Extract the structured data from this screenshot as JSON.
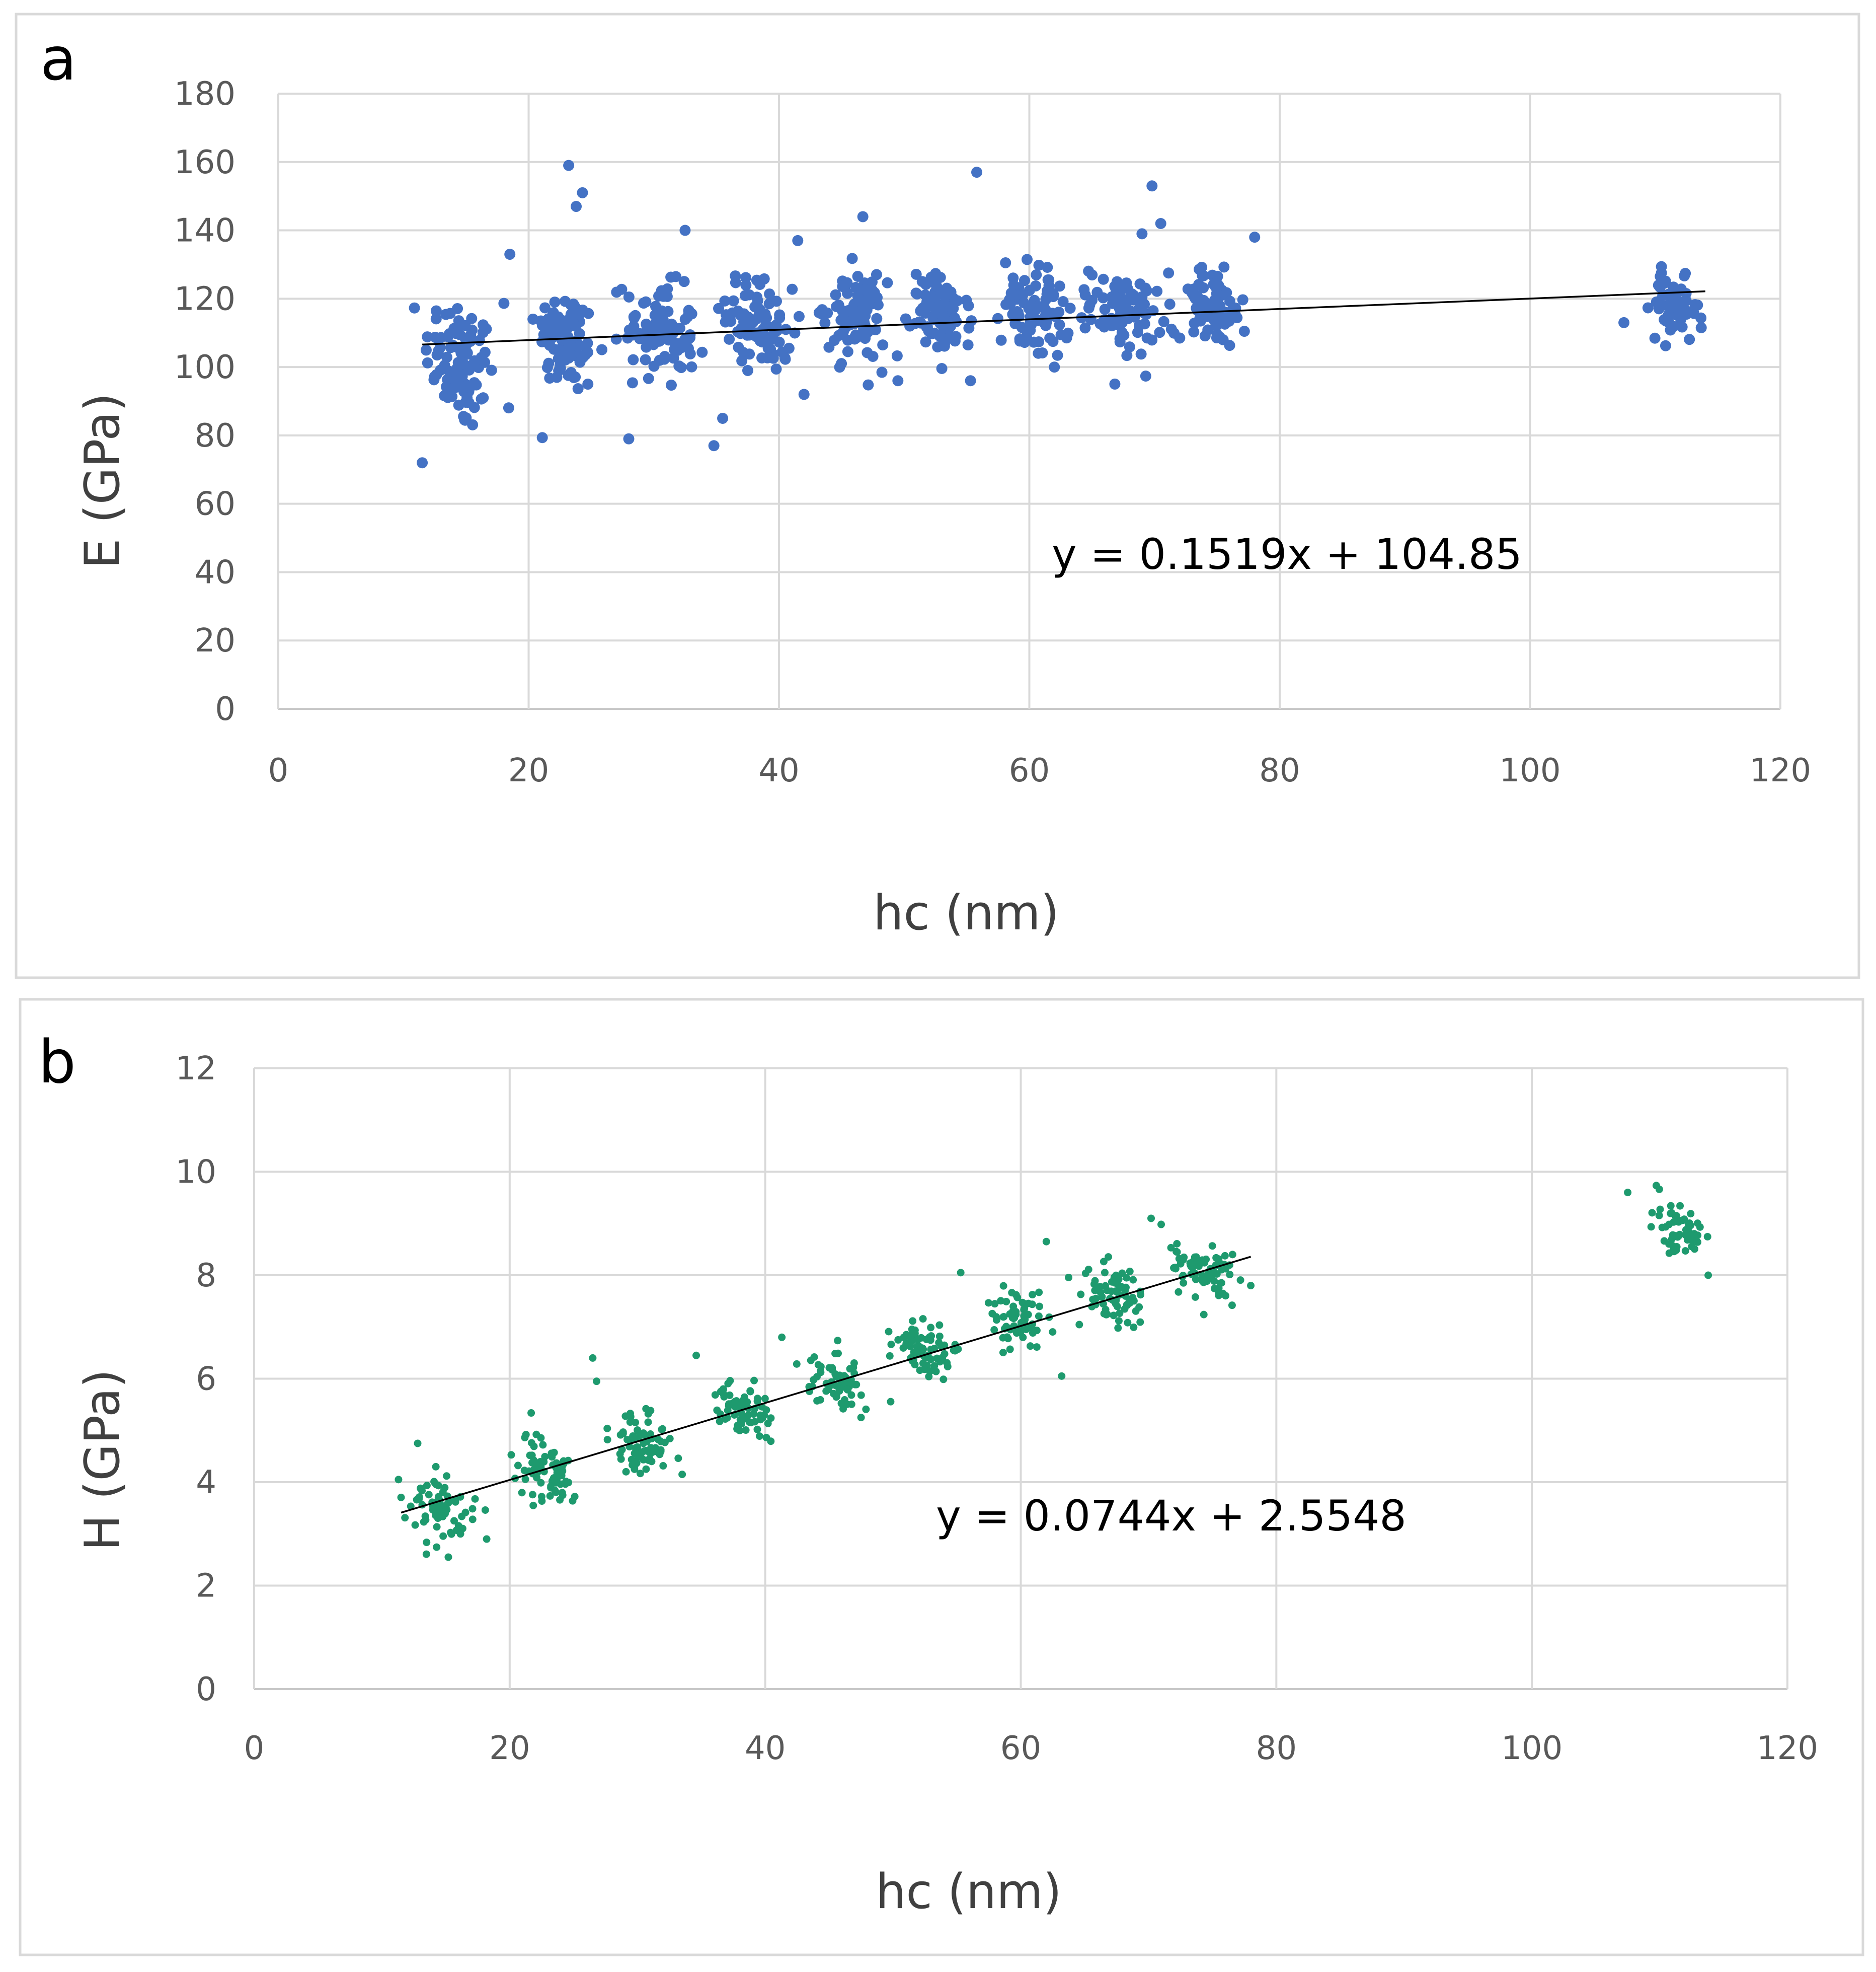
{
  "chart_data": [
    {
      "type": "scatter",
      "panel_label": "a",
      "xlabel": "hc (nm)",
      "ylabel": "E (GPa)",
      "xlim": [
        0,
        120
      ],
      "ylim": [
        0,
        180
      ],
      "x_ticks": [
        "0",
        "20",
        "40",
        "60",
        "80",
        "100",
        "120"
      ],
      "y_ticks": [
        "0",
        "20",
        "40",
        "60",
        "80",
        "100",
        "120",
        "140",
        "160",
        "180"
      ],
      "grid": true,
      "marker_color": "#4472c4",
      "trendline": {
        "slope": 0.1519,
        "intercept": 104.85,
        "x_range": [
          11.5,
          114
        ]
      },
      "equation": "y = 0.1519x + 104.85",
      "clusters": [
        {
          "x_center": 14.5,
          "x_spread": 1.6,
          "y_center": 101,
          "y_spread": 10,
          "count": 95
        },
        {
          "x_center": 23,
          "x_spread": 1.4,
          "y_center": 108,
          "y_spread": 8,
          "count": 90
        },
        {
          "x_center": 30.5,
          "x_spread": 1.6,
          "y_center": 110,
          "y_spread": 8,
          "count": 90
        },
        {
          "x_center": 38.5,
          "x_spread": 1.5,
          "y_center": 113,
          "y_spread": 7,
          "count": 85
        },
        {
          "x_center": 46,
          "x_spread": 1.4,
          "y_center": 115,
          "y_spread": 7,
          "count": 85
        },
        {
          "x_center": 53,
          "x_spread": 1.4,
          "y_center": 115,
          "y_spread": 6,
          "count": 85
        },
        {
          "x_center": 60.5,
          "x_spread": 1.5,
          "y_center": 117,
          "y_spread": 7,
          "count": 80
        },
        {
          "x_center": 67.5,
          "x_spread": 1.5,
          "y_center": 116,
          "y_spread": 6,
          "count": 80
        },
        {
          "x_center": 74.5,
          "x_spread": 1.6,
          "y_center": 118,
          "y_spread": 6,
          "count": 80
        },
        {
          "x_center": 111.5,
          "x_spread": 1.1,
          "y_center": 117,
          "y_spread": 5,
          "count": 55
        }
      ],
      "outliers": [
        {
          "x": 11.5,
          "y": 72
        },
        {
          "x": 18.5,
          "y": 133
        },
        {
          "x": 23.2,
          "y": 159
        },
        {
          "x": 24.3,
          "y": 151
        },
        {
          "x": 23.8,
          "y": 147
        },
        {
          "x": 28,
          "y": 79
        },
        {
          "x": 32.5,
          "y": 140
        },
        {
          "x": 34.8,
          "y": 77
        },
        {
          "x": 35.5,
          "y": 85
        },
        {
          "x": 41.5,
          "y": 137
        },
        {
          "x": 42,
          "y": 92
        },
        {
          "x": 46.7,
          "y": 144
        },
        {
          "x": 49.5,
          "y": 96
        },
        {
          "x": 55.8,
          "y": 157
        },
        {
          "x": 55.3,
          "y": 96
        },
        {
          "x": 62,
          "y": 100
        },
        {
          "x": 69.8,
          "y": 153
        },
        {
          "x": 70.5,
          "y": 142
        },
        {
          "x": 69,
          "y": 139
        },
        {
          "x": 78,
          "y": 138
        },
        {
          "x": 107.5,
          "y": 113
        }
      ]
    },
    {
      "type": "scatter",
      "panel_label": "b",
      "xlabel": "hc (nm)",
      "ylabel": "H (GPa)",
      "xlim": [
        0,
        120
      ],
      "ylim": [
        0,
        12
      ],
      "x_ticks": [
        "0",
        "20",
        "40",
        "60",
        "80",
        "100",
        "120"
      ],
      "y_ticks": [
        "0",
        "2",
        "4",
        "6",
        "8",
        "10",
        "12"
      ],
      "grid": true,
      "marker_color": "#1e9a6e",
      "trendline": {
        "slope": 0.0744,
        "intercept": 2.5548,
        "x_range": [
          11.5,
          78
        ]
      },
      "equation": "y = 0.0744x + 2.5548",
      "clusters": [
        {
          "x_center": 14.5,
          "x_spread": 1.5,
          "y_center": 3.6,
          "y_spread": 0.4,
          "count": 70
        },
        {
          "x_center": 22.8,
          "x_spread": 1.3,
          "y_center": 4.2,
          "y_spread": 0.35,
          "count": 75
        },
        {
          "x_center": 30.3,
          "x_spread": 1.4,
          "y_center": 4.75,
          "y_spread": 0.3,
          "count": 75
        },
        {
          "x_center": 38.3,
          "x_spread": 1.3,
          "y_center": 5.35,
          "y_spread": 0.28,
          "count": 70
        },
        {
          "x_center": 45.5,
          "x_spread": 1.3,
          "y_center": 5.95,
          "y_spread": 0.25,
          "count": 65
        },
        {
          "x_center": 52.8,
          "x_spread": 1.3,
          "y_center": 6.55,
          "y_spread": 0.28,
          "count": 70
        },
        {
          "x_center": 59.8,
          "x_spread": 1.3,
          "y_center": 7.15,
          "y_spread": 0.28,
          "count": 70
        },
        {
          "x_center": 67,
          "x_spread": 1.4,
          "y_center": 7.6,
          "y_spread": 0.3,
          "count": 70
        },
        {
          "x_center": 74.5,
          "x_spread": 1.6,
          "y_center": 8.05,
          "y_spread": 0.3,
          "count": 75
        },
        {
          "x_center": 111.3,
          "x_spread": 1.1,
          "y_center": 8.9,
          "y_spread": 0.3,
          "count": 55
        }
      ],
      "outliers": [
        {
          "x": 11.3,
          "y": 4.05
        },
        {
          "x": 12.8,
          "y": 4.75
        },
        {
          "x": 18.2,
          "y": 2.9
        },
        {
          "x": 15.2,
          "y": 2.55
        },
        {
          "x": 26.5,
          "y": 6.4
        },
        {
          "x": 26.8,
          "y": 5.95
        },
        {
          "x": 33.5,
          "y": 4.15
        },
        {
          "x": 34.6,
          "y": 6.45
        },
        {
          "x": 41.3,
          "y": 6.8
        },
        {
          "x": 47.5,
          "y": 5.25
        },
        {
          "x": 55.3,
          "y": 8.05
        },
        {
          "x": 62,
          "y": 8.65
        },
        {
          "x": 63.2,
          "y": 6.05
        },
        {
          "x": 70.2,
          "y": 9.1
        },
        {
          "x": 78,
          "y": 7.8
        },
        {
          "x": 107.5,
          "y": 9.6
        },
        {
          "x": 113.8,
          "y": 8.0
        }
      ]
    }
  ]
}
